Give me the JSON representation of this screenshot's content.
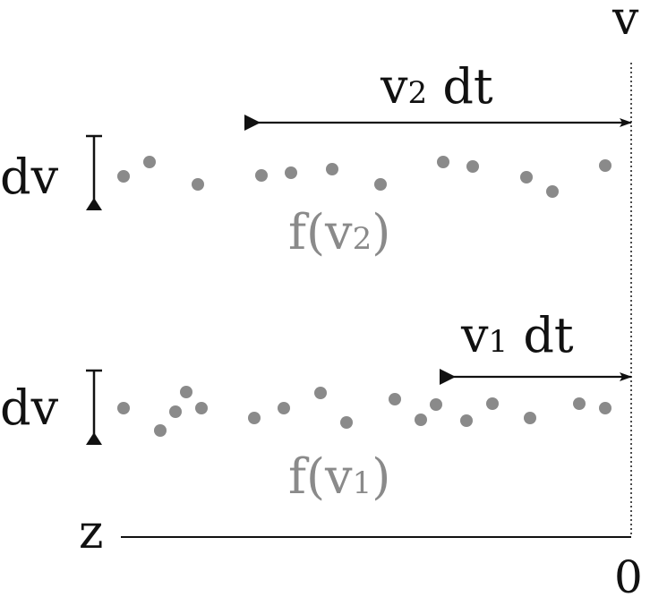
{
  "labels": {
    "v_axis": "v",
    "z_axis": "z",
    "origin": "0",
    "row_top_arrow_main": "v",
    "row_top_arrow_sub": "2",
    "row_top_arrow_tail": " dt",
    "row_top_dv": "dv",
    "row_top_f_pre": "f(v",
    "row_top_f_sub": "2",
    "row_top_f_post": ")",
    "row_bottom_arrow_main": "v",
    "row_bottom_arrow_sub": "1",
    "row_bottom_arrow_tail": " dt",
    "row_bottom_dv": "dv",
    "row_bottom_f_pre": "f(v",
    "row_bottom_f_sub": "1",
    "row_bottom_f_post": ")"
  },
  "colors": {
    "ink": "#111111",
    "dots": "#8a8a8a",
    "f_label": "#8a8a8a"
  }
}
